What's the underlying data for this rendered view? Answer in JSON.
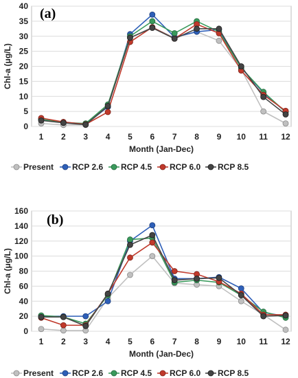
{
  "chart_data": [
    {
      "type": "line",
      "panel_label": "(a)",
      "xlabel": "Month (Jan-Dec)",
      "ylabel": "Chl-a (μg/L)",
      "ylim": [
        0,
        40
      ],
      "yticks": [
        0,
        5,
        10,
        15,
        20,
        25,
        30,
        35,
        40
      ],
      "categories": [
        "1",
        "2",
        "3",
        "4",
        "5",
        "6",
        "7",
        "8",
        "9",
        "10",
        "11",
        "12"
      ],
      "grid": true,
      "legend": "bottom",
      "series": [
        {
          "name": "Present",
          "color": "#c0c0c0",
          "marker_edge": "#8a8a8a",
          "values": [
            1.0,
            0.5,
            0.5,
            6.5,
            29.5,
            33.0,
            29.5,
            31.5,
            28.5,
            19.0,
            5.0,
            1.0
          ]
        },
        {
          "name": "RCP 2.6",
          "color": "#2e5fb8",
          "marker_edge": "#1e3f7c",
          "values": [
            2.3,
            1.3,
            0.8,
            6.5,
            30.7,
            37.2,
            29.7,
            31.5,
            32.2,
            19.5,
            11.2,
            4.8
          ]
        },
        {
          "name": "RCP 4.5",
          "color": "#3a9a5c",
          "marker_edge": "#23663b",
          "values": [
            2.4,
            1.3,
            1.0,
            7.3,
            30.0,
            35.0,
            31.0,
            35.0,
            31.5,
            19.5,
            11.5,
            4.8
          ]
        },
        {
          "name": "RCP 6.0",
          "color": "#c0392b",
          "marker_edge": "#7e241b",
          "values": [
            2.8,
            1.5,
            0.7,
            4.8,
            28.1,
            33.0,
            29.2,
            34.0,
            31.0,
            18.6,
            10.5,
            5.2
          ]
        },
        {
          "name": "RCP 8.5",
          "color": "#444444",
          "marker_edge": "#1e1e1e",
          "values": [
            2.0,
            1.2,
            0.6,
            6.8,
            29.5,
            32.8,
            29.2,
            32.5,
            32.5,
            20.0,
            9.8,
            4.0
          ]
        }
      ]
    },
    {
      "type": "line",
      "panel_label": "(b)",
      "xlabel": "Month (Jan-Dec)",
      "ylabel": "Chl-a (μg/L)",
      "ylim": [
        0,
        160
      ],
      "yticks": [
        0,
        20,
        40,
        60,
        80,
        100,
        120,
        140,
        160
      ],
      "categories": [
        "1",
        "2",
        "3",
        "4",
        "5",
        "6",
        "7",
        "8",
        "9",
        "10",
        "11",
        "12"
      ],
      "grid": true,
      "legend": "bottom",
      "series": [
        {
          "name": "Present",
          "color": "#c0c0c0",
          "marker_edge": "#8a8a8a",
          "values": [
            3,
            1,
            1,
            44,
            75,
            100,
            64,
            62,
            60,
            40,
            22,
            2
          ]
        },
        {
          "name": "RCP 2.6",
          "color": "#2e5fb8",
          "marker_edge": "#1e3f7c",
          "values": [
            20,
            20,
            20,
            40,
            120,
            141,
            70,
            70,
            72,
            57,
            25,
            20
          ]
        },
        {
          "name": "RCP 4.5",
          "color": "#3a9a5c",
          "marker_edge": "#23663b",
          "values": [
            21,
            19,
            10,
            48,
            122,
            124,
            65,
            68,
            65,
            48,
            26,
            18
          ]
        },
        {
          "name": "RCP 6.0",
          "color": "#c0392b",
          "marker_edge": "#7e241b",
          "values": [
            18,
            8,
            8,
            50,
            98,
            118,
            80,
            76,
            66,
            50,
            22,
            22
          ]
        },
        {
          "name": "RCP 8.5",
          "color": "#444444",
          "marker_edge": "#1e1e1e",
          "values": [
            19,
            19,
            7,
            50,
            115,
            128,
            68,
            70,
            71,
            48,
            20,
            21
          ]
        }
      ]
    }
  ]
}
